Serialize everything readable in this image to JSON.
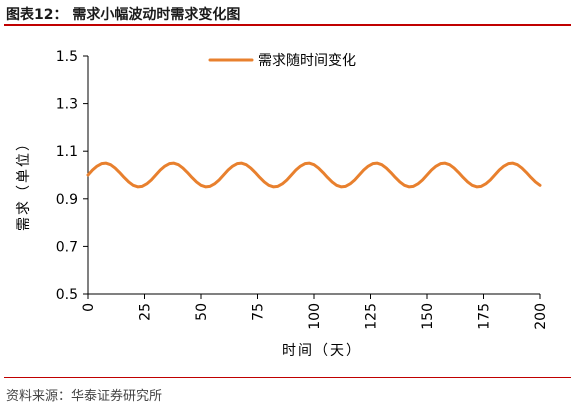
{
  "figure": {
    "label": "图表12：",
    "title": "需求小幅波动时需求变化图",
    "source": "资料来源：华泰证券研究所"
  },
  "colors": {
    "series": "#E8802E",
    "accent_rule": "#C00000",
    "axis": "#000000"
  },
  "chart_data": {
    "type": "line",
    "xlabel": "时间（天）",
    "ylabel": "需求（单位）",
    "xlim": [
      0,
      200
    ],
    "ylim": [
      0.5,
      1.5
    ],
    "xticks": [
      0,
      25,
      50,
      75,
      100,
      125,
      150,
      175,
      200
    ],
    "yticks": [
      0.5,
      0.7,
      0.9,
      1.1,
      1.3,
      1.5
    ],
    "ytick_labels": [
      "0.5",
      "0.7",
      "0.9",
      "1.1",
      "1.3",
      "1.5"
    ],
    "grid": false,
    "legend": "top-center",
    "series": [
      {
        "name": "需求随时间变化",
        "x": [
          0,
          2,
          4,
          6,
          8,
          10,
          12,
          14,
          16,
          18,
          20,
          22,
          24,
          26,
          28,
          30,
          32,
          34,
          36,
          38,
          40,
          42,
          44,
          46,
          48,
          50,
          52,
          54,
          56,
          58,
          60,
          62,
          64,
          66,
          68,
          70,
          72,
          74,
          76,
          78,
          80,
          82,
          84,
          86,
          88,
          90,
          92,
          94,
          96,
          98,
          100,
          102,
          104,
          106,
          108,
          110,
          112,
          114,
          116,
          118,
          120,
          122,
          124,
          126,
          128,
          130,
          132,
          134,
          136,
          138,
          140,
          142,
          144,
          146,
          148,
          150,
          152,
          154,
          156,
          158,
          160,
          162,
          164,
          166,
          168,
          170,
          172,
          174,
          176,
          178,
          180,
          182,
          184,
          186,
          188,
          190,
          192,
          194,
          196,
          198,
          200
        ],
        "values": [
          1.0,
          1.0208,
          1.0372,
          1.0476,
          1.0498,
          1.0433,
          1.0292,
          1.0104,
          0.9896,
          0.9708,
          0.9567,
          0.9502,
          0.9524,
          0.9628,
          0.9792,
          1.0,
          1.0208,
          1.0372,
          1.0476,
          1.0498,
          1.0433,
          1.0292,
          1.0104,
          0.9896,
          0.9708,
          0.9567,
          0.9502,
          0.9524,
          0.9628,
          0.9792,
          1.0,
          1.0208,
          1.0372,
          1.0476,
          1.0498,
          1.0433,
          1.0292,
          1.0104,
          0.9896,
          0.9708,
          0.9567,
          0.9502,
          0.9524,
          0.9628,
          0.9792,
          1.0,
          1.0208,
          1.0372,
          1.0476,
          1.0498,
          1.0433,
          1.0292,
          1.0104,
          0.9896,
          0.9708,
          0.9567,
          0.9502,
          0.9524,
          0.9628,
          0.9792,
          1.0,
          1.0208,
          1.0372,
          1.0476,
          1.0498,
          1.0433,
          1.0292,
          1.0104,
          0.9896,
          0.9708,
          0.9567,
          0.9502,
          0.9524,
          0.9628,
          0.9792,
          1.0,
          1.0208,
          1.0372,
          1.0476,
          1.0498,
          1.0433,
          1.0292,
          1.0104,
          0.9896,
          0.9708,
          0.9567,
          0.9502,
          0.9524,
          0.9628,
          0.9792,
          1.0,
          1.0208,
          1.0372,
          1.0476,
          1.0498,
          1.0433,
          1.0292,
          1.0104,
          0.9896,
          0.9708,
          0.9567
        ]
      }
    ]
  }
}
